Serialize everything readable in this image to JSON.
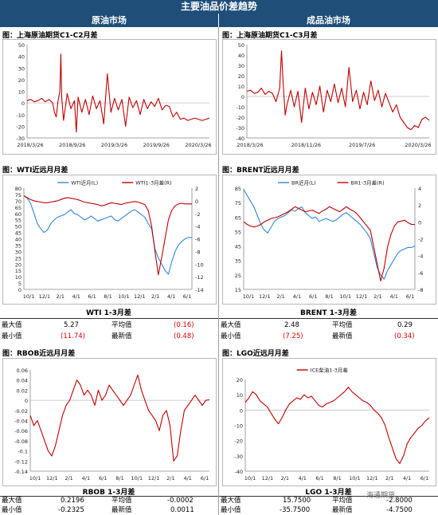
{
  "header": {
    "title": "主要油品价差趋势",
    "left": "原油市场",
    "right": "成品油市场"
  },
  "panels": {
    "p1": {
      "label": "图：上海原油期货C1-C2月差"
    },
    "p2": {
      "label": "图：上海原油期货C1-C3月差"
    },
    "p3": {
      "label": "图：WTI近远月月差"
    },
    "p4": {
      "label": "图：BRENT近远月月差"
    },
    "p5": {
      "label": "图：RBOB近远月月差"
    },
    "p6": {
      "label": "图：LGO近远月月差"
    }
  },
  "stats": {
    "wti": {
      "title": "WTI 1-3月差",
      "max_label": "最大值",
      "max": "5.27",
      "avg_label": "平均值",
      "avg": "(0.16)",
      "min_label": "最小值",
      "min": "(11.74)",
      "latest_label": "最新值",
      "latest": "(0.48)"
    },
    "brent": {
      "title": "BRENT 1-3月差",
      "max_label": "最大值",
      "max": "2.48",
      "avg_label": "平均值",
      "avg": "0.29",
      "min_label": "最小值",
      "min": "(7.25)",
      "latest_label": "最新值",
      "latest": "(0.34)"
    },
    "rbob": {
      "title": "RBOB 1-3月差",
      "max_label": "最大值",
      "max": "0.2196",
      "avg_label": "平均值",
      "avg": "-0.0002",
      "min_label": "最小值",
      "min": "-0.2325",
      "latest_label": "最新值",
      "latest": "0.0011"
    },
    "lgo": {
      "title": "LGO 1-3月差",
      "max_label": "最大值",
      "max": "15.7500",
      "avg_label": "平均值",
      "avg": "-2.8000",
      "min_label": "最小值",
      "min": "-35.7500",
      "latest_label": "最新值",
      "latest": "-4.7500"
    }
  },
  "watermark": "海通期货",
  "colors": {
    "header": "#1f4e79",
    "red": "#c00000",
    "blue": "#2e86de",
    "negative": "#e00000"
  },
  "chart_data": [
    {
      "id": "sc_c1c2",
      "type": "line",
      "title": "上海原油期货C1-C2月差",
      "ylim": [
        -30,
        50
      ],
      "yticks": [
        -30,
        -20,
        -10,
        0,
        10,
        20,
        30,
        40,
        50
      ],
      "xticks": [
        "2018/3/26",
        "2018/9/26",
        "2019/3/26",
        "2019/9/26",
        "2020/3/26"
      ],
      "series": [
        {
          "color": "#c00000",
          "x": [
            0,
            2,
            4,
            6,
            8,
            10,
            12,
            14,
            15,
            16,
            17,
            18,
            18.5,
            19,
            20,
            22,
            24,
            26,
            27,
            28,
            30,
            32,
            34,
            36,
            38,
            40,
            42,
            44,
            46,
            48,
            50,
            52,
            54,
            56,
            58,
            60,
            62,
            64,
            66,
            68,
            70,
            72,
            74,
            76,
            78,
            80,
            82,
            84,
            86,
            88,
            90,
            92,
            94,
            96,
            100
          ],
          "values": [
            2,
            3,
            1,
            2,
            4,
            1,
            3,
            0,
            -8,
            -12,
            2,
            10,
            42,
            5,
            -15,
            8,
            -5,
            2,
            -25,
            5,
            -8,
            3,
            -10,
            6,
            -5,
            2,
            -18,
            25,
            -8,
            4,
            -6,
            3,
            -20,
            5,
            -4,
            2,
            -10,
            3,
            -5,
            1,
            -3,
            4,
            -6,
            -2,
            -3,
            -12,
            -8,
            -14,
            -13,
            -15,
            -14,
            -13,
            -14,
            -15,
            -13
          ]
        }
      ]
    },
    {
      "id": "sc_c1c3",
      "type": "line",
      "title": "上海原油期货C1-C3月差",
      "ylim": [
        -40,
        50
      ],
      "yticks": [
        -40,
        -30,
        -20,
        -10,
        0,
        10,
        20,
        30,
        40,
        50
      ],
      "xticks": [
        "2018/3/26",
        "2018/11/26",
        "2019/7/26",
        "2020/3/26"
      ],
      "series": [
        {
          "color": "#c00000",
          "x": [
            0,
            2,
            4,
            6,
            8,
            10,
            12,
            14,
            16,
            18,
            19,
            20,
            21,
            22,
            24,
            26,
            28,
            30,
            32,
            34,
            36,
            38,
            40,
            42,
            44,
            46,
            48,
            50,
            52,
            54,
            56,
            58,
            60,
            62,
            64,
            66,
            68,
            70,
            72,
            74,
            76,
            78,
            80,
            82,
            84,
            86,
            88,
            90,
            92,
            94,
            96,
            98,
            100
          ],
          "values": [
            5,
            6,
            3,
            4,
            8,
            2,
            5,
            3,
            -5,
            8,
            44,
            10,
            -18,
            -8,
            6,
            -10,
            5,
            -25,
            8,
            -12,
            4,
            -8,
            10,
            -15,
            6,
            -5,
            12,
            -6,
            8,
            -10,
            28,
            -5,
            6,
            -12,
            4,
            -8,
            15,
            -4,
            6,
            -10,
            3,
            -6,
            -15,
            -8,
            -20,
            -25,
            -30,
            -32,
            -28,
            -30,
            -22,
            -20,
            -23
          ]
        }
      ]
    },
    {
      "id": "wti",
      "type": "line",
      "title": "WTI近远月月差",
      "ylim": [
        0,
        80
      ],
      "y2lim": [
        -14,
        2
      ],
      "yticks": [
        0,
        5,
        10,
        15,
        20,
        25,
        30,
        35,
        40,
        45,
        50,
        55,
        60,
        65,
        70,
        75,
        80
      ],
      "y2ticks": [
        -14,
        -12,
        -10,
        -8,
        -6,
        -4,
        -2,
        0,
        2
      ],
      "xticks": [
        "10/1",
        "12/1",
        "2/1",
        "4/1",
        "6/1",
        "8/1",
        "10/1",
        "12/1",
        "2/1",
        "4/1",
        "6/1"
      ],
      "series": [
        {
          "name": "WTI近月(L)",
          "axis": "left",
          "color": "#2e86de",
          "x": [
            0,
            2,
            4,
            6,
            8,
            10,
            12,
            14,
            16,
            18,
            20,
            22,
            24,
            26,
            28,
            30,
            32,
            34,
            36,
            38,
            40,
            42,
            44,
            46,
            48,
            50,
            52,
            54,
            56,
            58,
            60,
            62,
            64,
            66,
            68,
            70,
            72,
            74,
            76,
            78,
            80,
            82,
            84,
            86,
            88,
            90,
            92,
            94,
            96,
            98,
            100
          ],
          "values": [
            74,
            72,
            68,
            60,
            52,
            48,
            45,
            47,
            52,
            55,
            57,
            58,
            59,
            61,
            63,
            60,
            59,
            57,
            55,
            56,
            58,
            56,
            54,
            55,
            56,
            57,
            58,
            55,
            54,
            56,
            58,
            60,
            62,
            63,
            61,
            59,
            57,
            52,
            48,
            32,
            25,
            20,
            15,
            12,
            22,
            30,
            35,
            38,
            40,
            41,
            41
          ]
        },
        {
          "name": "WTI1-3月差(R)",
          "axis": "right",
          "color": "#c00000",
          "x": [
            0,
            2,
            4,
            6,
            8,
            10,
            12,
            14,
            16,
            18,
            20,
            22,
            24,
            26,
            28,
            30,
            32,
            34,
            36,
            38,
            40,
            42,
            44,
            46,
            48,
            50,
            52,
            54,
            56,
            58,
            60,
            62,
            64,
            66,
            68,
            70,
            72,
            74,
            76,
            78,
            80,
            82,
            84,
            86,
            88,
            90,
            92,
            94,
            96,
            98,
            100
          ],
          "values": [
            0.8,
            0.5,
            0.2,
            0,
            -0.1,
            -0.2,
            -0.3,
            -0.3,
            -0.2,
            -0.1,
            0,
            0.2,
            0.4,
            0.5,
            0.4,
            0.3,
            0.2,
            0,
            -0.2,
            -0.3,
            -0.4,
            -0.5,
            -0.6,
            -0.8,
            -0.7,
            -0.5,
            -0.3,
            -0.4,
            -0.5,
            -0.6,
            -0.4,
            -0.3,
            -0.2,
            -0.1,
            -0.2,
            -0.4,
            -0.6,
            -1.5,
            -4,
            -8,
            -11.7,
            -9,
            -6,
            -3,
            -1.5,
            -0.8,
            -0.5,
            -0.4,
            -0.5,
            -0.5,
            -0.5
          ]
        }
      ]
    },
    {
      "id": "brent",
      "type": "line",
      "title": "BRENT近远月月差",
      "ylim": [
        15,
        85
      ],
      "y2lim": [
        -8,
        4
      ],
      "yticks": [
        15,
        25,
        35,
        45,
        55,
        65,
        75,
        85
      ],
      "y2ticks": [
        -8,
        -6,
        -4,
        -2,
        0,
        2,
        4
      ],
      "xticks": [
        "10/1",
        "12/1",
        "2/1",
        "4/1",
        "6/1",
        "8/1",
        "10/1",
        "12/1",
        "2/1",
        "4/1",
        "6/1"
      ],
      "series": [
        {
          "name": "BR近月(L)",
          "axis": "left",
          "color": "#2e86de",
          "x": [
            0,
            2,
            4,
            6,
            8,
            10,
            12,
            14,
            16,
            18,
            20,
            22,
            24,
            26,
            28,
            30,
            32,
            34,
            36,
            38,
            40,
            42,
            44,
            46,
            48,
            50,
            52,
            54,
            56,
            58,
            60,
            62,
            64,
            66,
            68,
            70,
            72,
            74,
            76,
            78,
            80,
            82,
            84,
            86,
            88,
            90,
            92,
            94,
            96,
            98,
            100
          ],
          "values": [
            84,
            80,
            76,
            72,
            66,
            60,
            56,
            54,
            58,
            62,
            64,
            65,
            66,
            68,
            70,
            69,
            71,
            72,
            68,
            66,
            64,
            65,
            62,
            63,
            64,
            63,
            62,
            63,
            65,
            67,
            68,
            66,
            64,
            62,
            60,
            57,
            54,
            50,
            40,
            30,
            25,
            22,
            28,
            32,
            36,
            40,
            42,
            43,
            44,
            44,
            45
          ]
        },
        {
          "name": "BR1-3月差(R)",
          "axis": "right",
          "color": "#c00000",
          "x": [
            0,
            2,
            4,
            6,
            8,
            10,
            12,
            14,
            16,
            18,
            20,
            22,
            24,
            26,
            28,
            30,
            32,
            34,
            36,
            38,
            40,
            42,
            44,
            46,
            48,
            50,
            52,
            54,
            56,
            58,
            60,
            62,
            64,
            66,
            68,
            70,
            72,
            74,
            76,
            78,
            80,
            82,
            84,
            86,
            88,
            90,
            92,
            94,
            96,
            98,
            100
          ],
          "values": [
            0,
            -0.3,
            -0.5,
            -0.6,
            -0.5,
            -0.3,
            0,
            0.2,
            0.4,
            0.5,
            0.6,
            0.8,
            1.0,
            1.2,
            1.5,
            1.8,
            1.6,
            1.4,
            1.2,
            1.3,
            1.4,
            1.2,
            1.0,
            1.3,
            1.5,
            1.8,
            1.6,
            1.4,
            1.2,
            1.5,
            1.8,
            1.5,
            1.3,
            1.0,
            0.5,
            0,
            -0.5,
            -1.0,
            -3,
            -5,
            -7,
            -5.5,
            -3,
            -1.5,
            -0.5,
            0,
            0.1,
            0.2,
            -0.1,
            -0.3,
            -0.3
          ]
        }
      ]
    },
    {
      "id": "rbob",
      "type": "line",
      "title": "RBOB近远月月差",
      "ylim": [
        -0.14,
        0.06
      ],
      "yticks": [
        -0.14,
        -0.12,
        -0.1,
        -0.08,
        -0.06,
        -0.04,
        -0.02,
        0,
        0.02,
        0.04,
        0.06
      ],
      "xticks": [
        "10/1",
        "12/1",
        "2/1",
        "4/1",
        "6/1",
        "8/1",
        "10/1",
        "12/1",
        "2/1",
        "4/1",
        "6/1"
      ],
      "series": [
        {
          "color": "#c00000",
          "x": [
            0,
            2,
            4,
            6,
            8,
            10,
            12,
            14,
            16,
            18,
            20,
            22,
            24,
            26,
            28,
            30,
            32,
            34,
            36,
            38,
            40,
            42,
            44,
            46,
            48,
            50,
            52,
            54,
            56,
            58,
            60,
            62,
            64,
            66,
            68,
            70,
            72,
            74,
            76,
            78,
            80,
            82,
            84,
            86,
            88,
            90,
            92,
            94,
            96,
            98,
            100
          ],
          "values": [
            -0.03,
            -0.05,
            -0.04,
            -0.06,
            -0.08,
            -0.1,
            -0.11,
            -0.09,
            -0.06,
            -0.03,
            -0.01,
            0,
            0.02,
            0.04,
            0.03,
            0.01,
            0.02,
            0.01,
            -0.01,
            0.02,
            0,
            0.01,
            0.03,
            0.02,
            0.01,
            0,
            -0.01,
            0,
            0.01,
            0.03,
            0.05,
            0.02,
            0,
            -0.02,
            -0.03,
            -0.04,
            -0.06,
            -0.03,
            -0.02,
            -0.05,
            -0.12,
            -0.11,
            -0.06,
            -0.02,
            -0.01,
            0,
            0.01,
            0,
            -0.01,
            0,
            0.001
          ]
        }
      ]
    },
    {
      "id": "lgo",
      "type": "line",
      "title": "LGO近远月月差",
      "ylim": [
        -40,
        20
      ],
      "yticks": [
        -40,
        -30,
        -20,
        -10,
        0,
        10,
        20
      ],
      "xticks": [
        "10/1",
        "12/1",
        "2/1",
        "4/1",
        "6/1",
        "8/1",
        "10/1",
        "12/1",
        "2/1",
        "4/1",
        "6/1"
      ],
      "series": [
        {
          "name": "ICE柴油1-3月差",
          "color": "#c00000",
          "x": [
            0,
            2,
            4,
            6,
            8,
            10,
            12,
            14,
            16,
            18,
            20,
            22,
            24,
            26,
            28,
            30,
            32,
            34,
            36,
            38,
            40,
            42,
            44,
            46,
            48,
            50,
            52,
            54,
            56,
            58,
            60,
            62,
            64,
            66,
            68,
            70,
            72,
            74,
            76,
            78,
            80,
            82,
            84,
            86,
            88,
            90,
            92,
            94,
            96,
            98,
            100
          ],
          "values": [
            5,
            8,
            12,
            10,
            6,
            4,
            2,
            -2,
            -6,
            -9,
            -5,
            0,
            4,
            6,
            8,
            7,
            10,
            8,
            9,
            6,
            3,
            2,
            4,
            5,
            6,
            8,
            10,
            12,
            15,
            12,
            10,
            8,
            6,
            5,
            3,
            0,
            -2,
            -5,
            -10,
            -18,
            -25,
            -32,
            -35,
            -30,
            -22,
            -18,
            -15,
            -12,
            -10,
            -7,
            -5
          ]
        }
      ]
    }
  ]
}
